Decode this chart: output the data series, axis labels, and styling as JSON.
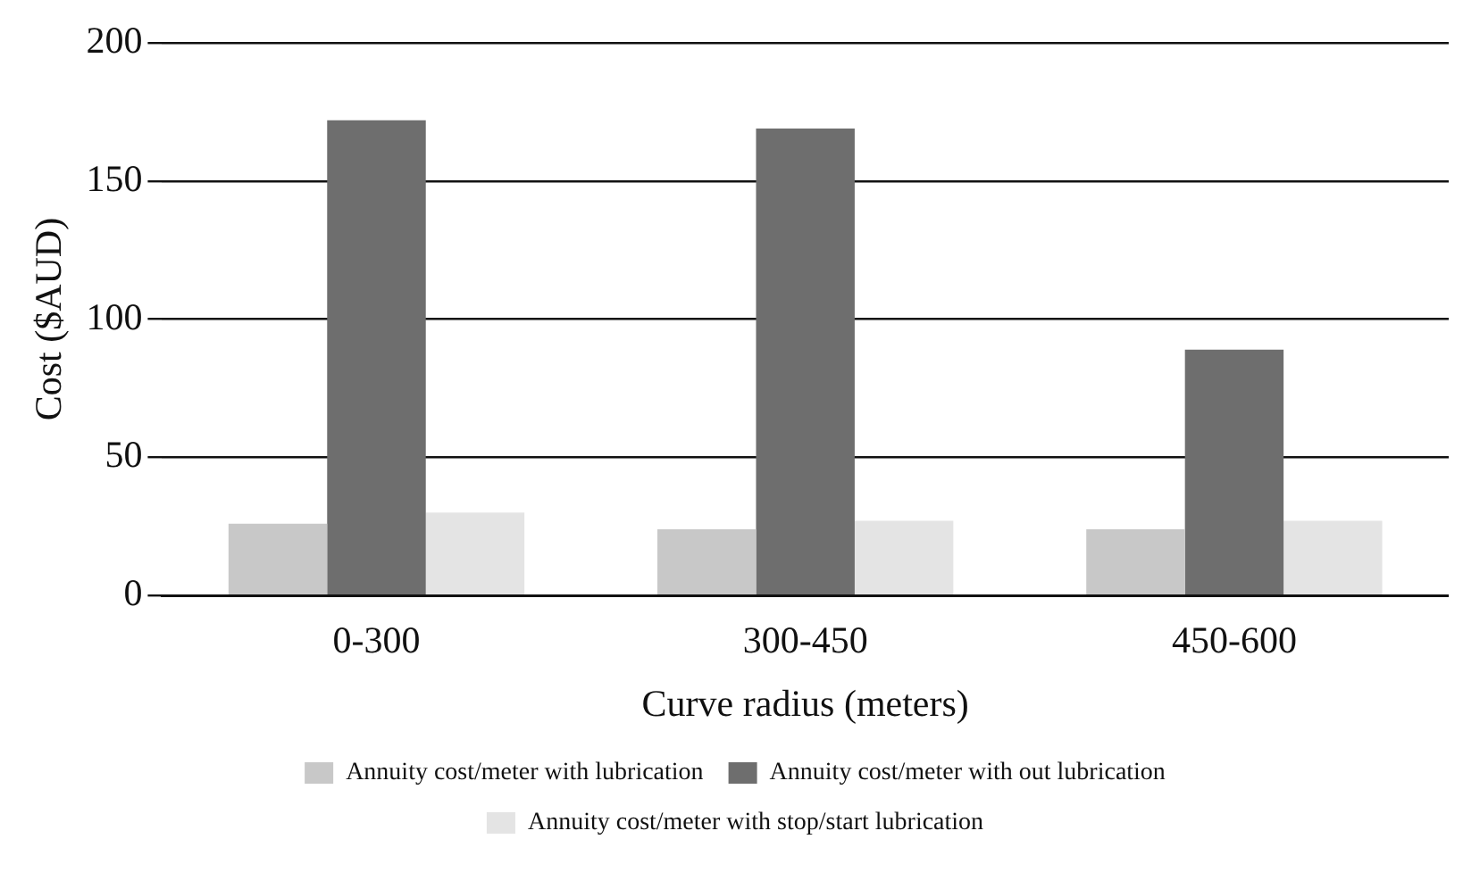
{
  "chart_data": {
    "type": "bar",
    "xlabel": "Curve radius (meters)",
    "ylabel": "Cost ($AUD)",
    "categories": [
      "0-300",
      "300-450",
      "450-600"
    ],
    "series": [
      {
        "name": "Annuity cost/meter with lubrication",
        "color": "#c8c8c8",
        "values": [
          26,
          24,
          24
        ]
      },
      {
        "name": "Annuity cost/meter with out lubrication",
        "color": "#6e6e6e",
        "values": [
          172,
          169,
          89
        ]
      },
      {
        "name": "Annuity cost/meter with stop/start lubrication",
        "color": "#e4e4e4",
        "values": [
          30,
          27,
          27
        ]
      }
    ],
    "ylim": [
      0,
      200
    ],
    "yticks": [
      0,
      50,
      100,
      150,
      200
    ],
    "grid": "y",
    "legend": "bottom"
  }
}
